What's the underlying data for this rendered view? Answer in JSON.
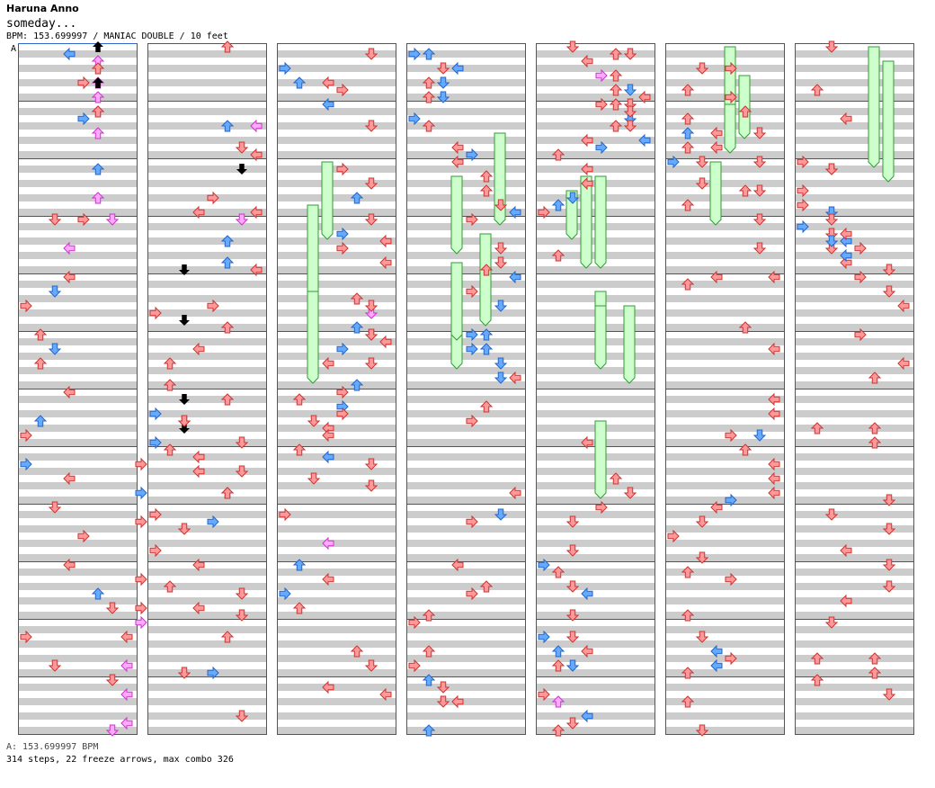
{
  "header": {
    "artist": "Haruna Anno",
    "title": "someday...",
    "info": "BPM: 153.699997 / MANIAC DOUBLE / 10 feet",
    "bpm_marker": "A"
  },
  "footer": {
    "bpm_line": "A: 153.699997 BPM",
    "stats": "314 steps, 22 freeze arrows, max combo 326"
  },
  "colors": {
    "stripe": "#cccccc",
    "red_arrow": "#ff9999",
    "blue_arrow": "#66aaff",
    "pink_arrow": "#ffaaff",
    "freeze": "#ccffcc"
  },
  "chart_data": {
    "type": "step-chart",
    "columns": 7,
    "measures_per_column": 12,
    "lanes": 8,
    "arrows": [
      [
        3,
        5,
        0
      ],
      [
        2,
        5,
        2
      ],
      [
        2,
        5,
        5
      ],
      [
        1,
        4,
        10
      ],
      [
        0,
        4,
        24
      ],
      [
        2,
        6,
        24
      ],
      [
        0,
        8,
        58
      ],
      [
        1,
        8,
        62
      ],
      [
        0,
        8,
        66
      ],
      [
        0,
        8,
        74
      ],
      [
        0,
        8,
        78
      ],
      [
        2,
        8,
        80
      ],
      [
        0,
        7,
        82
      ],
      [
        2,
        7,
        86
      ],
      [
        2,
        7,
        90
      ],
      [
        2,
        7,
        94
      ],
      [
        2,
        6,
        95
      ],
      [
        3,
        5,
        101
      ],
      [
        2,
        5,
        105
      ],
      [
        2,
        5,
        108
      ],
      [
        1,
        5,
        113
      ],
      [
        2,
        5,
        117
      ],
      [
        0,
        2,
        120
      ],
      [
        2,
        3,
        124
      ],
      [
        0,
        3,
        128
      ],
      [
        1,
        2,
        130
      ],
      [
        0,
        0,
        132
      ],
      [
        0,
        1,
        136
      ],
      [
        1,
        2,
        138
      ],
      [
        0,
        1,
        140
      ],
      [
        0,
        3,
        144
      ],
      [
        1,
        1,
        148
      ],
      [
        0,
        0,
        150
      ],
      [
        1,
        0,
        154
      ],
      [
        0,
        3,
        156
      ],
      [
        0,
        2,
        160
      ],
      [
        0,
        4,
        164
      ],
      [
        0,
        3,
        168
      ],
      [
        1,
        5,
        172
      ],
      [
        0,
        6,
        174
      ],
      [
        0,
        0,
        178
      ],
      [
        0,
        2,
        182
      ],
      [
        0,
        6,
        184
      ],
      [
        1,
        3,
        1
      ],
      [
        0,
        5,
        3
      ],
      [
        0,
        4,
        5
      ],
      [
        2,
        5,
        7
      ],
      [
        0,
        5,
        9
      ],
      [
        2,
        7,
        11
      ],
      [
        0,
        7,
        15
      ],
      [
        3,
        6,
        17
      ],
      [
        0,
        4,
        21
      ],
      [
        0,
        3,
        23
      ],
      [
        3,
        2,
        31
      ],
      [
        0,
        0,
        37
      ],
      [
        3,
        2,
        38
      ],
      [
        0,
        3,
        42
      ],
      [
        0,
        1,
        44
      ],
      [
        3,
        2,
        49
      ],
      [
        1,
        0,
        51
      ],
      [
        0,
        2,
        52
      ],
      [
        3,
        2,
        53
      ],
      [
        1,
        0,
        55
      ],
      [
        0,
        1,
        56
      ],
      [
        0,
        3,
        57
      ],
      [
        0,
        3,
        59
      ],
      [
        1,
        5,
        62
      ],
      [
        0,
        0,
        65
      ],
      [
        1,
        4,
        66
      ],
      [
        0,
        6,
        76
      ],
      [
        0,
        5,
        82
      ],
      [
        1,
        4,
        87
      ],
      [
        0,
        6,
        93
      ],
      [
        0,
        5,
        96
      ],
      [
        1,
        5,
        107
      ],
      [
        0,
        6,
        110
      ],
      [
        0,
        7,
        119
      ],
      [
        2,
        6,
        120
      ],
      [
        1,
        5,
        123
      ],
      [
        1,
        5,
        126
      ],
      [
        0,
        7,
        127
      ],
      [
        0,
        4,
        132
      ],
      [
        0,
        5,
        135
      ],
      [
        0,
        1,
        143
      ],
      [
        0,
        5,
        145
      ],
      [
        0,
        2,
        148
      ],
      [
        0,
        6,
        151
      ],
      [
        0,
        6,
        155
      ],
      [
        0,
        5,
        158
      ],
      [
        0,
        2,
        163
      ],
      [
        0,
        0,
        166
      ],
      [
        0,
        3,
        168
      ],
      [
        0,
        1,
        171
      ],
      [
        0,
        3,
        174
      ],
      [
        0,
        6,
        175
      ],
      [
        0,
        2,
        183
      ],
      [
        0,
        3,
        185
      ],
      [
        0,
        6,
        1
      ],
      [
        1,
        0,
        3
      ],
      [
        1,
        1,
        5
      ],
      [
        0,
        3,
        5
      ],
      [
        0,
        4,
        6
      ],
      [
        1,
        3,
        8
      ],
      [
        0,
        6,
        11
      ],
      [
        0,
        4,
        17
      ],
      [
        0,
        6,
        19
      ],
      [
        1,
        5,
        21
      ],
      [
        0,
        6,
        24
      ],
      [
        1,
        4,
        26
      ],
      [
        0,
        4,
        28
      ],
      [
        0,
        7,
        30
      ],
      [
        0,
        5,
        35
      ],
      [
        2,
        6,
        37
      ],
      [
        1,
        5,
        39
      ],
      [
        0,
        6,
        40
      ],
      [
        1,
        4,
        42
      ],
      [
        0,
        3,
        44
      ],
      [
        0,
        1,
        49
      ],
      [
        1,
        4,
        50
      ],
      [
        0,
        2,
        52
      ],
      [
        0,
        3,
        53
      ],
      [
        0,
        1,
        56
      ],
      [
        1,
        3,
        57
      ],
      [
        0,
        2,
        60
      ],
      [
        0,
        0,
        65
      ],
      [
        2,
        3,
        69
      ],
      [
        1,
        1,
        72
      ],
      [
        0,
        3,
        74
      ],
      [
        1,
        0,
        76
      ],
      [
        0,
        1,
        78
      ],
      [
        0,
        5,
        84
      ],
      [
        0,
        6,
        86
      ],
      [
        0,
        7,
        90
      ],
      [
        0,
        7,
        123
      ],
      [
        0,
        6,
        132
      ],
      [
        0,
        6,
        136
      ],
      [
        0,
        7,
        137
      ],
      [
        0,
        6,
        140
      ],
      [
        1,
        5,
        143
      ],
      [
        0,
        4,
        144
      ],
      [
        0,
        4,
        147
      ],
      [
        0,
        3,
        150
      ],
      [
        0,
        6,
        154
      ],
      [
        0,
        6,
        157
      ],
      [
        0,
        7,
        158
      ],
      [
        1,
        6,
        161
      ],
      [
        0,
        4,
        162
      ],
      [
        0,
        3,
        168
      ],
      [
        0,
        5,
        171
      ],
      [
        0,
        4,
        172
      ],
      [
        0,
        1,
        175
      ],
      [
        0,
        0,
        176
      ],
      [
        0,
        1,
        180
      ],
      [
        0,
        0,
        182
      ],
      [
        1,
        1,
        184
      ],
      [
        0,
        2,
        185
      ],
      [
        0,
        3,
        187
      ],
      [
        1,
        1,
        191
      ],
      [
        0,
        2,
        187
      ],
      [
        1,
        0,
        1
      ],
      [
        1,
        1,
        1
      ],
      [
        1,
        3,
        3
      ],
      [
        0,
        1,
        5
      ],
      [
        1,
        2,
        5
      ],
      [
        0,
        2,
        3
      ],
      [
        1,
        2,
        7
      ],
      [
        0,
        1,
        7
      ],
      [
        1,
        0,
        10
      ],
      [
        0,
        1,
        11
      ],
      [
        0,
        3,
        14
      ],
      [
        1,
        4,
        15
      ],
      [
        0,
        3,
        16
      ],
      [
        0,
        5,
        18
      ],
      [
        0,
        5,
        20
      ],
      [
        0,
        6,
        22
      ],
      [
        1,
        7,
        23
      ],
      [
        0,
        4,
        24
      ],
      [
        0,
        6,
        28
      ],
      [
        0,
        6,
        30
      ],
      [
        0,
        5,
        31
      ],
      [
        1,
        7,
        32
      ],
      [
        0,
        4,
        34
      ],
      [
        1,
        6,
        36
      ],
      [
        1,
        4,
        40
      ],
      [
        1,
        5,
        40
      ],
      [
        1,
        5,
        42
      ],
      [
        1,
        4,
        42
      ],
      [
        1,
        6,
        44
      ],
      [
        1,
        6,
        46
      ],
      [
        0,
        7,
        46
      ],
      [
        0,
        5,
        50
      ],
      [
        0,
        4,
        52
      ],
      [
        0,
        3,
        55
      ],
      [
        0,
        5,
        60
      ],
      [
        0,
        6,
        62
      ],
      [
        0,
        4,
        64
      ],
      [
        0,
        2,
        66
      ],
      [
        0,
        2,
        70
      ],
      [
        1,
        0,
        72
      ],
      [
        0,
        1,
        73
      ],
      [
        0,
        2,
        75
      ],
      [
        1,
        3,
        76
      ],
      [
        0,
        2,
        79
      ],
      [
        1,
        0,
        82
      ],
      [
        0,
        2,
        82
      ],
      [
        1,
        1,
        84
      ],
      [
        0,
        3,
        84
      ],
      [
        0,
        1,
        86
      ],
      [
        1,
        2,
        86
      ],
      [
        0,
        0,
        90
      ],
      [
        2,
        1,
        91
      ],
      [
        1,
        3,
        93
      ],
      [
        0,
        2,
        94
      ],
      [
        0,
        1,
        95
      ],
      [
        0,
        2,
        96
      ],
      [
        0,
        3,
        98
      ],
      [
        2,
        4,
        100
      ],
      [
        1,
        6,
        102
      ],
      [
        0,
        7,
        103
      ],
      [
        0,
        4,
        104
      ],
      [
        0,
        6,
        104
      ],
      [
        1,
        6,
        106
      ],
      [
        0,
        5,
        107
      ],
      [
        1,
        7,
        109
      ],
      [
        0,
        5,
        104
      ],
      [
        0,
        5,
        1
      ],
      [
        0,
        6,
        1
      ],
      [
        0,
        5,
        4
      ],
      [
        0,
        5,
        6
      ],
      [
        0,
        6,
        9
      ],
      [
        0,
        6,
        11
      ],
      [
        0,
        3,
        13
      ],
      [
        1,
        4,
        14
      ],
      [
        0,
        1,
        15
      ],
      [
        0,
        3,
        17
      ],
      [
        0,
        3,
        19
      ],
      [
        1,
        2,
        21
      ],
      [
        1,
        1,
        22
      ],
      [
        0,
        0,
        23
      ],
      [
        0,
        1,
        29
      ],
      [
        0,
        3,
        32
      ],
      [
        0,
        1,
        33
      ],
      [
        0,
        5,
        39
      ],
      [
        0,
        7,
        42
      ],
      [
        0,
        7,
        49
      ],
      [
        0,
        7,
        51
      ],
      [
        0,
        4,
        54
      ],
      [
        1,
        6,
        54
      ],
      [
        0,
        5,
        56
      ],
      [
        0,
        7,
        58
      ],
      [
        0,
        7,
        60
      ],
      [
        0,
        7,
        62
      ],
      [
        1,
        4,
        63
      ],
      [
        0,
        3,
        64
      ],
      [
        0,
        2,
        66
      ],
      [
        0,
        0,
        68
      ],
      [
        0,
        2,
        71
      ],
      [
        0,
        1,
        73
      ],
      [
        0,
        4,
        74
      ],
      [
        0,
        1,
        79
      ],
      [
        0,
        2,
        82
      ],
      [
        1,
        3,
        84
      ],
      [
        0,
        4,
        85
      ],
      [
        1,
        3,
        86
      ],
      [
        0,
        1,
        87
      ],
      [
        0,
        1,
        91
      ],
      [
        0,
        2,
        95
      ],
      [
        0,
        4,
        99
      ],
      [
        0,
        4,
        103
      ],
      [
        0,
        6,
        108
      ],
      [
        0,
        6,
        112
      ],
      [
        0,
        2,
        112
      ],
      [
        0,
        2,
        115
      ],
      [
        0,
        6,
        116
      ],
      [
        0,
        1,
        118
      ],
      [
        0,
        6,
        120
      ],
      [
        0,
        6,
        124
      ],
      [
        0,
        7,
        128
      ],
      [
        0,
        5,
        116
      ],
      [
        0,
        2,
        3
      ],
      [
        0,
        1,
        6
      ],
      [
        0,
        5,
        9
      ],
      [
        0,
        1,
        10
      ],
      [
        1,
        1,
        12
      ],
      [
        0,
        3,
        12
      ],
      [
        0,
        1,
        14
      ],
      [
        0,
        3,
        14
      ],
      [
        1,
        0,
        16
      ],
      [
        0,
        2,
        17
      ],
      [
        0,
        2,
        17
      ],
      [
        0,
        0,
        20
      ],
      [
        0,
        0,
        22
      ],
      [
        1,
        2,
        23
      ],
      [
        0,
        2,
        26
      ],
      [
        1,
        3,
        27
      ],
      [
        0,
        2,
        28
      ],
      [
        0,
        3,
        30
      ],
      [
        0,
        4,
        32
      ],
      [
        0,
        6,
        34
      ],
      [
        0,
        7,
        36
      ],
      [
        0,
        4,
        40
      ],
      [
        0,
        7,
        44
      ],
      [
        0,
        5,
        46
      ],
      [
        0,
        1,
        53
      ],
      [
        0,
        5,
        53
      ],
      [
        0,
        5,
        55
      ],
      [
        0,
        6,
        63
      ],
      [
        0,
        2,
        65
      ],
      [
        0,
        6,
        67
      ],
      [
        0,
        3,
        70
      ],
      [
        0,
        6,
        72
      ],
      [
        0,
        6,
        75
      ],
      [
        0,
        3,
        77
      ],
      [
        0,
        2,
        80
      ],
      [
        0,
        1,
        85
      ],
      [
        0,
        5,
        85
      ],
      [
        0,
        5,
        87
      ],
      [
        0,
        1,
        88
      ],
      [
        0,
        6,
        90
      ],
      [
        0,
        2,
        96
      ],
      [
        0,
        1,
        102
      ],
      [
        0,
        3,
        106
      ],
      [
        0,
        0,
        112
      ],
      [
        0,
        2,
        120
      ],
      [
        1,
        0,
        121
      ],
      [
        0,
        3,
        122
      ],
      [
        1,
        2,
        123
      ],
      [
        0,
        4,
        124
      ],
      [
        1,
        3,
        125
      ],
      [
        0,
        6,
        127
      ]
    ],
    "freezes": [
      [
        3,
        6,
        6
      ],
      [
        2,
        11,
        7
      ],
      [
        2,
        17,
        6
      ],
      [
        4,
        10,
        3
      ],
      [
        3,
        18,
        4
      ],
      [
        5,
        1,
        3
      ],
      [
        2,
        8,
        5
      ],
      [
        3,
        15,
        5
      ],
      [
        4,
        9,
        6
      ],
      [
        4,
        17,
        4
      ],
      [
        3,
        13,
        6
      ],
      [
        4,
        18,
        5
      ],
      [
        5,
        2,
        4
      ],
      [
        5,
        0,
        4
      ],
      [
        3,
        9,
        5
      ],
      [
        4,
        9,
        6
      ],
      [
        4,
        18,
        4
      ],
      [
        4,
        26,
        5
      ],
      [
        5,
        8,
        4
      ],
      [
        5,
        4,
        3
      ],
      [
        6,
        0,
        8
      ],
      [
        6,
        1,
        8
      ]
    ]
  }
}
